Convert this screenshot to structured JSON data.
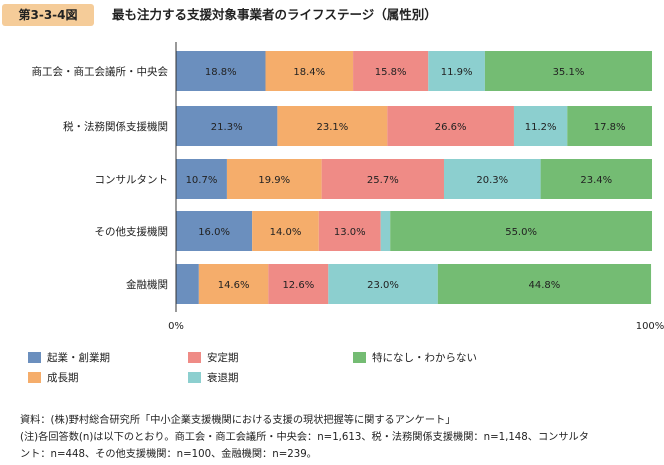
{
  "header": {
    "figure_label": "第3-3-4図",
    "title": "最も注力する支援対象事業者のライフステージ（属性別）"
  },
  "chart_data": {
    "type": "bar",
    "orientation": "horizontal",
    "stacked": true,
    "percent_scale": true,
    "categories": [
      "商工会・商工会議所・中央会",
      "税・法務関係支援機関",
      "コンサルタント",
      "その他支援機関",
      "金融機関"
    ],
    "series": [
      {
        "name": "起業・創業期",
        "color": "#6b8fbe",
        "values": [
          18.8,
          21.3,
          10.7,
          16.0,
          4.8
        ],
        "labels": [
          "18.8%",
          "21.3%",
          "10.7%",
          "16.0%",
          ""
        ]
      },
      {
        "name": "成長期",
        "color": "#f5ad6b",
        "values": [
          18.4,
          23.1,
          19.9,
          14.0,
          14.6
        ],
        "labels": [
          "18.4%",
          "23.1%",
          "19.9%",
          "14.0%",
          "14.6%"
        ]
      },
      {
        "name": "安定期",
        "color": "#ef8b86",
        "values": [
          15.8,
          26.6,
          25.7,
          13.0,
          12.6
        ],
        "labels": [
          "15.8%",
          "26.6%",
          "25.7%",
          "13.0%",
          "12.6%"
        ]
      },
      {
        "name": "衰退期",
        "color": "#8ccfcf",
        "values": [
          11.9,
          11.2,
          20.3,
          2.0,
          23.0
        ],
        "labels": [
          "11.9%",
          "11.2%",
          "20.3%",
          "",
          "23.0%"
        ]
      },
      {
        "name": "特になし・わからない",
        "color": "#74bc73",
        "values": [
          35.1,
          17.8,
          23.4,
          55.0,
          44.8
        ],
        "labels": [
          "35.1%",
          "17.8%",
          "23.4%",
          "55.0%",
          "44.8%"
        ]
      }
    ],
    "xlim": [
      0,
      100
    ],
    "x_tick_labels": [
      "0%",
      "100%"
    ],
    "grid": false,
    "legend_position": "bottom"
  },
  "legend": {
    "items": [
      {
        "label": "起業・創業期",
        "color": "#6b8fbe"
      },
      {
        "label": "安定期",
        "color": "#ef8b86"
      },
      {
        "label": "特になし・わからない",
        "color": "#74bc73"
      },
      {
        "label": "成長期",
        "color": "#f5ad6b"
      },
      {
        "label": "衰退期",
        "color": "#8ccfcf"
      }
    ]
  },
  "notes": {
    "source": "資料：(株)野村総合研究所「中小企業支援機関における支援の現状把握等に関するアンケート」",
    "note_line1": "(注)各回答数(n)は以下のとおり。商工会・商工会議所・中央会：n=1,613、税・法務関係支援機関：n=1,148、コンサルタ",
    "note_line2": "ント：n=448、その他支援機関：n=100、金融機関：n=239。"
  }
}
